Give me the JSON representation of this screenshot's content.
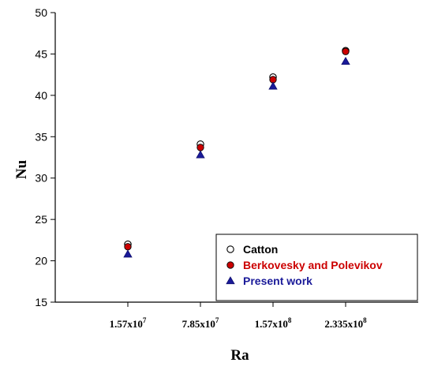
{
  "chart_data": {
    "type": "scatter",
    "title": "",
    "xlabel": "Ra",
    "ylabel": "Nu",
    "ylim": [
      15,
      50
    ],
    "yticks": [
      15,
      20,
      25,
      30,
      35,
      40,
      45,
      50
    ],
    "categories": [
      {
        "base": "1.57x10",
        "exp": "7"
      },
      {
        "base": "7.85x10",
        "exp": "7"
      },
      {
        "base": "1.57x10",
        "exp": "8"
      },
      {
        "base": "2.335x10",
        "exp": "8"
      }
    ],
    "series": [
      {
        "name": "Catton",
        "marker": "open-circle",
        "color": "#000000",
        "values": [
          22.0,
          34.1,
          42.2,
          45.4
        ]
      },
      {
        "name": "Berkovesky and Polevikov",
        "marker": "filled-circle",
        "color": "#cc0000",
        "values": [
          21.7,
          33.7,
          41.9,
          45.3
        ]
      },
      {
        "name": "Present work",
        "marker": "triangle",
        "color": "#1a1a99",
        "values": [
          20.8,
          32.8,
          41.1,
          44.1
        ]
      }
    ],
    "legend_position": "bottom-right",
    "grid": false
  }
}
